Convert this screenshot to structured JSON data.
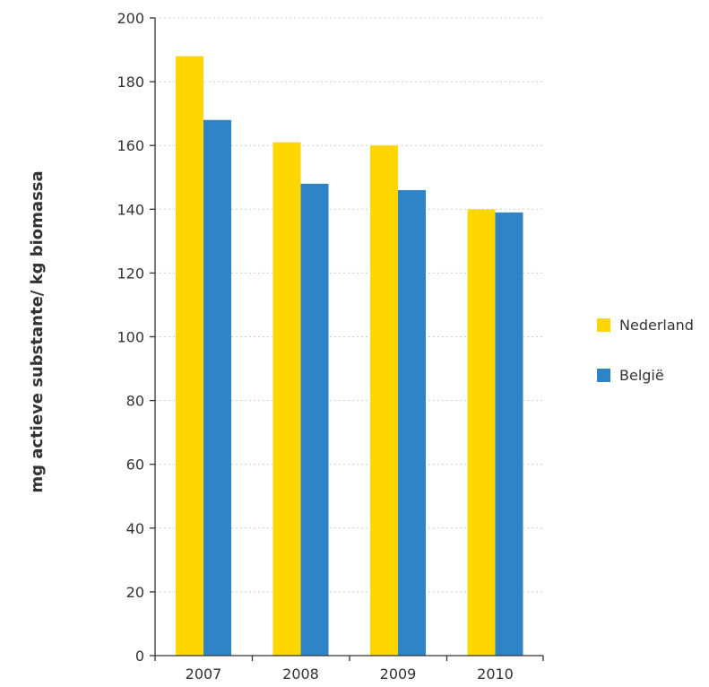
{
  "chart_data": {
    "type": "bar",
    "title": "",
    "xlabel": "",
    "ylabel": "mg actieve substante/ kg biomassa",
    "categories": [
      "2007",
      "2008",
      "2009",
      "2010"
    ],
    "series": [
      {
        "name": "Nederland",
        "values": [
          188,
          161,
          160,
          140
        ],
        "color": "#ffd700"
      },
      {
        "name": "België",
        "values": [
          168,
          148,
          146,
          139
        ],
        "color": "#2e84c6"
      }
    ],
    "ylim": [
      0,
      200
    ],
    "yticks": [
      0,
      20,
      40,
      60,
      80,
      100,
      120,
      140,
      160,
      180,
      200
    ],
    "grid": "horizontal-dotted",
    "legend": "right"
  }
}
